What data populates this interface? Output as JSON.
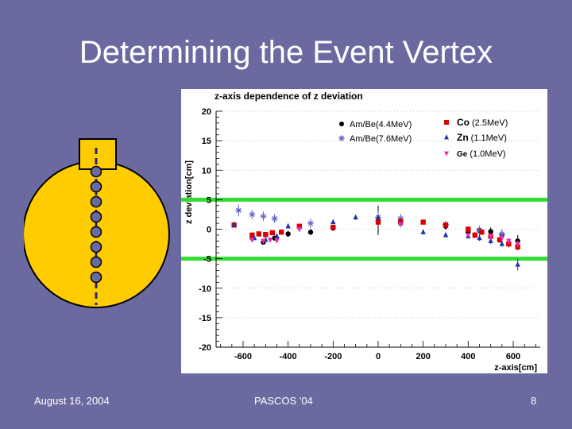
{
  "slide": {
    "title": "Determining the Event Vertex",
    "footer_date": "August 16, 2004",
    "footer_event": "PASCOS '04",
    "page_number": "8"
  },
  "colors": {
    "background": "#6a6aa0",
    "detector_fill": "#ffcc00",
    "source_fill": "#6a6aa0",
    "band": "#33dd33"
  },
  "chart_data": {
    "type": "scatter",
    "title": "z-axis dependence of z deviation",
    "xlabel": "z-axis[cm]",
    "ylabel": "z deviation[cm]",
    "xlim": [
      -720,
      720
    ],
    "ylim": [
      -20,
      20
    ],
    "xticks": [
      -600,
      -400,
      -200,
      0,
      200,
      400,
      600
    ],
    "yticks": [
      20,
      15,
      10,
      5,
      0,
      -5,
      -10,
      -15,
      -20
    ],
    "bands": [
      5,
      -5
    ],
    "series": [
      {
        "name": "Am/Be(4.4MeV)",
        "color": "#000000",
        "marker": "circle",
        "points": [
          [
            -560,
            -1.5
          ],
          [
            -510,
            -2.2
          ],
          [
            -460,
            -1.5
          ],
          [
            -400,
            -0.8
          ],
          [
            -300,
            -0.5
          ],
          [
            -200,
            0.2
          ],
          [
            0,
            1.5
          ],
          [
            100,
            1.3
          ],
          [
            300,
            0.5
          ],
          [
            400,
            -0.5
          ],
          [
            450,
            -0.2
          ],
          [
            500,
            -0.4
          ],
          [
            550,
            -1
          ],
          [
            620,
            -2
          ]
        ],
        "errs": [
          0.5,
          0.4,
          0.4,
          0.5,
          0.5,
          0.5,
          2.5,
          0.8,
          0.6,
          0.5,
          0.6,
          0.7,
          0.7,
          1
        ]
      },
      {
        "name": "Am/Be(7.6MeV)",
        "color": "#6666cc",
        "marker": "star",
        "points": [
          [
            -620,
            3.2
          ],
          [
            -560,
            2.5
          ],
          [
            -510,
            2.2
          ],
          [
            -460,
            1.8
          ],
          [
            -300,
            1
          ],
          [
            0,
            2
          ],
          [
            100,
            1.8
          ],
          [
            300,
            0.8
          ],
          [
            450,
            -0.2
          ],
          [
            550,
            -0.8
          ]
        ],
        "errs": [
          1,
          0.8,
          0.8,
          0.8,
          0.8,
          1,
          0.8,
          0.6,
          0.8,
          0.8
        ]
      },
      {
        "name": "Co",
        "energy": "(2.5MeV)",
        "color": "#dd0000",
        "marker": "square",
        "points": [
          [
            -640,
            0.7
          ],
          [
            -560,
            -1
          ],
          [
            -530,
            -0.8
          ],
          [
            -500,
            -0.9
          ],
          [
            -470,
            -0.6
          ],
          [
            -430,
            -0.5
          ],
          [
            -350,
            0.5
          ],
          [
            -200,
            0.3
          ],
          [
            0,
            1.2
          ],
          [
            100,
            1.3
          ],
          [
            200,
            1.2
          ],
          [
            300,
            0.7
          ],
          [
            400,
            0
          ],
          [
            430,
            -1
          ],
          [
            460,
            -0.5
          ],
          [
            500,
            -1.2
          ],
          [
            540,
            -1.8
          ],
          [
            580,
            -2.5
          ],
          [
            620,
            -3
          ]
        ],
        "errs": [
          0.4,
          0.4,
          0.4,
          0.4,
          0.4,
          0.4,
          0.4,
          0.4,
          0.5,
          0.5,
          0.4,
          0.5,
          0.5,
          0.5,
          0.5,
          0.5,
          0.5,
          0.6,
          0.6
        ]
      },
      {
        "name": "Zn",
        "energy": "(1.1MeV)",
        "color": "#2233aa",
        "marker": "triangle",
        "points": [
          [
            -640,
            0.8
          ],
          [
            -550,
            -1.5
          ],
          [
            -500,
            -1.8
          ],
          [
            -450,
            -1.2
          ],
          [
            -400,
            0.5
          ],
          [
            -200,
            1.2
          ],
          [
            -100,
            2
          ],
          [
            0,
            2
          ],
          [
            100,
            1
          ],
          [
            200,
            -0.5
          ],
          [
            300,
            -1
          ],
          [
            400,
            -1.2
          ],
          [
            450,
            -1.5
          ],
          [
            500,
            -2
          ],
          [
            550,
            -2.5
          ],
          [
            620,
            -6
          ]
        ],
        "errs": [
          0.4,
          0.4,
          0.4,
          0.4,
          0.4,
          0.4,
          0.4,
          0.4,
          0.4,
          0.4,
          0.4,
          0.4,
          0.5,
          0.5,
          0.5,
          1
        ]
      },
      {
        "name": "Ge",
        "energy": "(1.0MeV)",
        "color": "#dd33aa",
        "marker": "triangle-down",
        "points": [
          [
            -560,
            -1.8
          ],
          [
            -510,
            -2
          ],
          [
            -480,
            -1.8
          ],
          [
            -450,
            -1.9
          ],
          [
            -350,
            0
          ],
          [
            100,
            0.8
          ],
          [
            400,
            -1
          ],
          [
            500,
            -1.2
          ],
          [
            550,
            -1.5
          ],
          [
            580,
            -2
          ],
          [
            620,
            -2.5
          ]
        ],
        "errs": [
          0.4,
          0.4,
          0.4,
          0.4,
          0.4,
          0.4,
          0.4,
          0.5,
          0.5,
          0.5,
          0.6
        ]
      }
    ]
  }
}
